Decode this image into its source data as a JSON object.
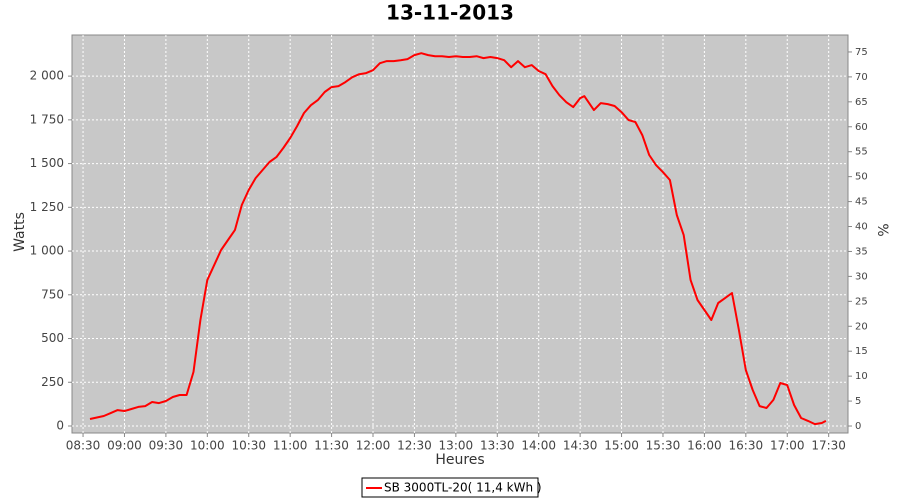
{
  "chart_data": {
    "type": "line",
    "title": "13-11-2013",
    "xlabel": "Heures",
    "ylabel": "Watts",
    "y2label": "%",
    "x": [
      "08:35",
      "08:45",
      "08:50",
      "08:55",
      "09:00",
      "09:05",
      "09:10",
      "09:15",
      "09:20",
      "09:25",
      "09:30",
      "09:35",
      "09:40",
      "09:45",
      "09:50",
      "09:55",
      "10:00",
      "10:05",
      "10:10",
      "10:15",
      "10:20",
      "10:25",
      "10:30",
      "10:35",
      "10:40",
      "10:45",
      "10:50",
      "10:55",
      "11:00",
      "11:05",
      "11:10",
      "11:15",
      "11:20",
      "11:25",
      "11:30",
      "11:35",
      "11:40",
      "11:45",
      "11:50",
      "11:55",
      "12:00",
      "12:05",
      "12:10",
      "12:15",
      "12:20",
      "12:25",
      "12:30",
      "12:35",
      "12:40",
      "12:45",
      "12:50",
      "12:55",
      "13:00",
      "13:05",
      "13:10",
      "13:15",
      "13:20",
      "13:25",
      "13:30",
      "13:35",
      "13:40",
      "13:45",
      "13:50",
      "13:55",
      "14:00",
      "14:05",
      "14:10",
      "14:15",
      "14:20",
      "14:25",
      "14:30",
      "14:33",
      "14:40",
      "14:45",
      "14:50",
      "14:55",
      "15:00",
      "15:05",
      "15:10",
      "15:15",
      "15:20",
      "15:25",
      "15:30",
      "15:35",
      "15:40",
      "15:45",
      "15:50",
      "15:55",
      "16:00",
      "16:05",
      "16:10",
      "16:15",
      "16:20",
      "16:25",
      "16:30",
      "16:35",
      "16:40",
      "16:45",
      "16:50",
      "16:55",
      "17:00",
      "17:05",
      "17:10",
      "17:15",
      "17:20",
      "17:25",
      "17:28"
    ],
    "series": [
      {
        "name": "SB 3000TL-20( 11,4 kWh )",
        "color": "#ff0000",
        "values": [
          40,
          57,
          74,
          91,
          86,
          97,
          109,
          114,
          137,
          131,
          143,
          166,
          177,
          177,
          309,
          606,
          834,
          920,
          1006,
          1063,
          1120,
          1263,
          1349,
          1417,
          1463,
          1509,
          1537,
          1589,
          1646,
          1714,
          1789,
          1834,
          1863,
          1909,
          1937,
          1943,
          1966,
          1994,
          2011,
          2017,
          2034,
          2074,
          2086,
          2086,
          2091,
          2097,
          2120,
          2131,
          2120,
          2114,
          2114,
          2109,
          2114,
          2109,
          2109,
          2114,
          2103,
          2109,
          2103,
          2091,
          2051,
          2086,
          2051,
          2063,
          2029,
          2011,
          1943,
          1891,
          1851,
          1823,
          1874,
          1886,
          1806,
          1846,
          1840,
          1829,
          1794,
          1749,
          1737,
          1663,
          1549,
          1491,
          1451,
          1406,
          1206,
          1091,
          834,
          720,
          663,
          606,
          703,
          731,
          760,
          549,
          320,
          206,
          114,
          103,
          149,
          246,
          234,
          120,
          46,
          29,
          11,
          17,
          29
        ]
      }
    ],
    "xlim": [
      "08:22",
      "17:44"
    ],
    "xticks": [
      "08:30",
      "09:00",
      "09:30",
      "10:00",
      "10:30",
      "11:00",
      "11:30",
      "12:00",
      "12:30",
      "13:00",
      "13:30",
      "14:00",
      "14:30",
      "15:00",
      "15:30",
      "16:00",
      "16:30",
      "17:00",
      "17:30"
    ],
    "ylim": [
      -40,
      2235
    ],
    "yticks": [
      0,
      250,
      500,
      750,
      {
        "value": 1000,
        "label": "1 000"
      },
      {
        "value": 1250,
        "label": "1 250"
      },
      {
        "value": 1500,
        "label": "1 500"
      },
      {
        "value": 1750,
        "label": "1 750"
      },
      {
        "value": 2000,
        "label": "2 000"
      }
    ],
    "y2lim": [
      -1.4,
      78.4
    ],
    "y2ticks": [
      0,
      5,
      10,
      15,
      20,
      25,
      30,
      35,
      40,
      45,
      50,
      55,
      60,
      65,
      70,
      75
    ],
    "grid": true
  }
}
